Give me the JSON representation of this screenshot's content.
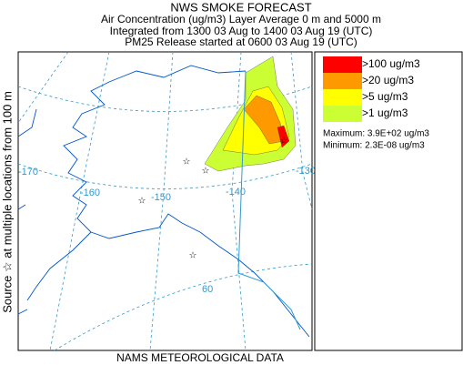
{
  "header": {
    "title": "NWS SMOKE FORECAST",
    "lines": [
      "Air Concentration (ug/m3) Layer Average    0 m and  5000 m",
      "Integrated from 1300 03 Aug to 1400 03 Aug 19 (UTC)",
      "PM25 Release started at 0600 03 Aug 19 (UTC)"
    ]
  },
  "map": {
    "lon_labels": [
      "-170",
      "-160",
      "-150",
      "-140",
      "-130"
    ],
    "lat_labels": [
      "60"
    ]
  },
  "legend": {
    "items": [
      {
        "label": ">100 ug/m3",
        "color": "#ff0000"
      },
      {
        "label": ">20 ug/m3",
        "color": "#ff9900"
      },
      {
        "label": ">5 ug/m3",
        "color": "#ffff00"
      },
      {
        "label": ">1 ug/m3",
        "color": "#ccff33"
      }
    ],
    "maximum": "Maximum: 3.9E+02 ug/m3",
    "minimum": "Minimum: 2.3E-08 ug/m3"
  },
  "footer": "NAMS METEOROLOGICAL DATA",
  "side_label": "Source ☆ at multiple locations    from  100 m"
}
